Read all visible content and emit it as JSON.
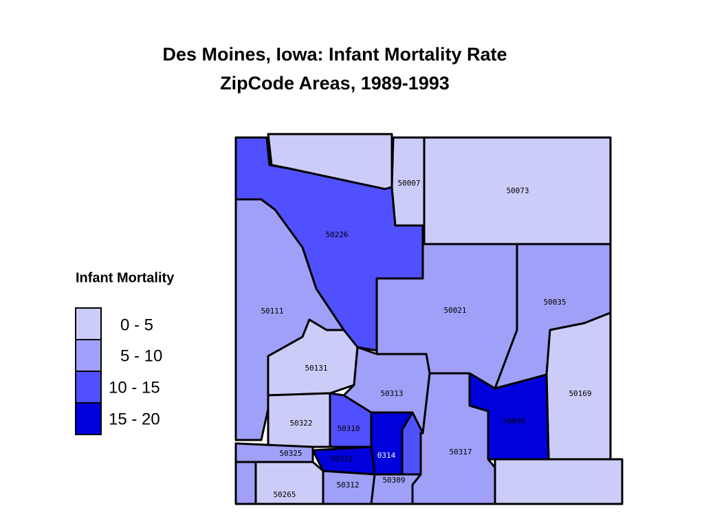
{
  "title": [
    "Des Moines, Iowa: Infant Mortality Rate",
    "ZipCode Areas, 1989-1993"
  ],
  "legend": {
    "title": "Infant Mortality",
    "items": [
      {
        "label": "0 - 5",
        "color": "#ccccf8"
      },
      {
        "label": "5 - 10",
        "color": "#a0a0f8"
      },
      {
        "label": "10 - 15",
        "color": "#5050ff"
      },
      {
        "label": "15 - 20",
        "color": "#0000dd"
      }
    ]
  },
  "regions": [
    {
      "color": "#ccccf8"
    },
    {
      "label": "50226",
      "color": "#5050ff"
    },
    {
      "label": "50007",
      "color": "#ccccf8"
    },
    {
      "label": "50073",
      "color": "#ccccf8"
    },
    {
      "label": "50111",
      "color": "#a0a0f8"
    },
    {
      "label": "50131",
      "color": "#ccccf8"
    },
    {
      "label": "50021",
      "color": "#a0a0f8"
    },
    {
      "label": "50035",
      "color": "#a0a0f8"
    },
    {
      "label": "50169",
      "color": "#ccccf8"
    },
    {
      "label": "50099",
      "color": "#0000dd"
    },
    {
      "label": "50313",
      "color": "#a0a0f8"
    },
    {
      "label": "50317",
      "color": "#a0a0f8"
    },
    {
      "label": "50322",
      "color": "#ccccf8"
    },
    {
      "label": "50310",
      "color": "#5050ff"
    },
    {
      "label": "0314",
      "color": "#0000dd"
    },
    {
      "label": "50311",
      "color": "#0000dd"
    },
    {
      "label": "50325",
      "color": "#a0a0f8"
    },
    {
      "color": "#5050ff"
    },
    {
      "label": "50265",
      "color": "#ccccf8"
    },
    {
      "label": "50312",
      "color": "#a0a0f8"
    },
    {
      "label": "50309",
      "color": "#a0a0f8"
    },
    {
      "color": "#ccccf8"
    },
    {
      "color": "#a0a0f8"
    }
  ]
}
